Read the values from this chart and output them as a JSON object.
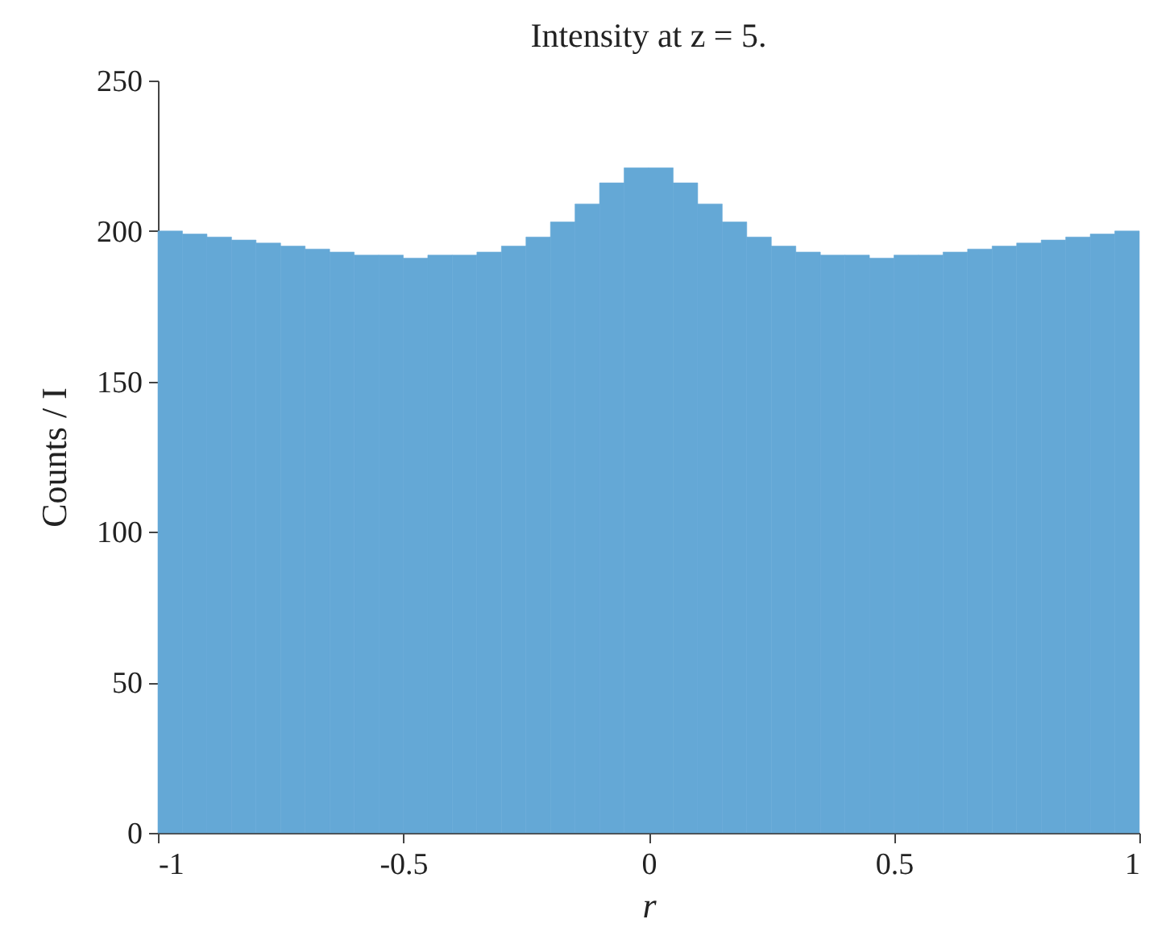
{
  "chart_data": {
    "type": "histogram",
    "title": "Intensity at z = 5.",
    "xlabel": "r",
    "ylabel": "Counts / I",
    "color": "#64a8d6",
    "bins": [
      -1,
      -0.95,
      -0.9,
      -0.85,
      -0.8,
      -0.75,
      -0.7,
      -0.65,
      -0.6,
      -0.55,
      -0.5,
      -0.45,
      -0.4,
      -0.35,
      -0.3,
      -0.25,
      -0.2,
      -0.15,
      -0.1,
      -0.05,
      0,
      0.05,
      0.1,
      0.15,
      0.2,
      0.25,
      0.3,
      0.35,
      0.4,
      0.45,
      0.5,
      0.55,
      0.6,
      0.65,
      0.7,
      0.75,
      0.8,
      0.85,
      0.9,
      0.95,
      1
    ],
    "values": [
      200,
      199,
      198,
      197,
      196,
      195,
      194,
      193,
      192,
      192,
      191,
      192,
      192,
      193,
      195,
      198,
      203,
      209,
      216,
      221,
      221,
      216,
      209,
      203,
      198,
      195,
      193,
      192,
      192,
      191,
      192,
      192,
      193,
      194,
      195,
      196,
      197,
      198,
      199,
      200
    ],
    "xlim": [
      -1,
      1
    ],
    "xticks": [
      {
        "value": -1,
        "label": "-1"
      },
      -0.5,
      {
        "value": 0,
        "label": "0"
      },
      0.5,
      {
        "value": 1,
        "label": "1"
      }
    ],
    "ylim": [
      0,
      250
    ],
    "yticks": [
      0,
      50,
      100,
      150,
      200,
      250
    ],
    "grid": false
  }
}
